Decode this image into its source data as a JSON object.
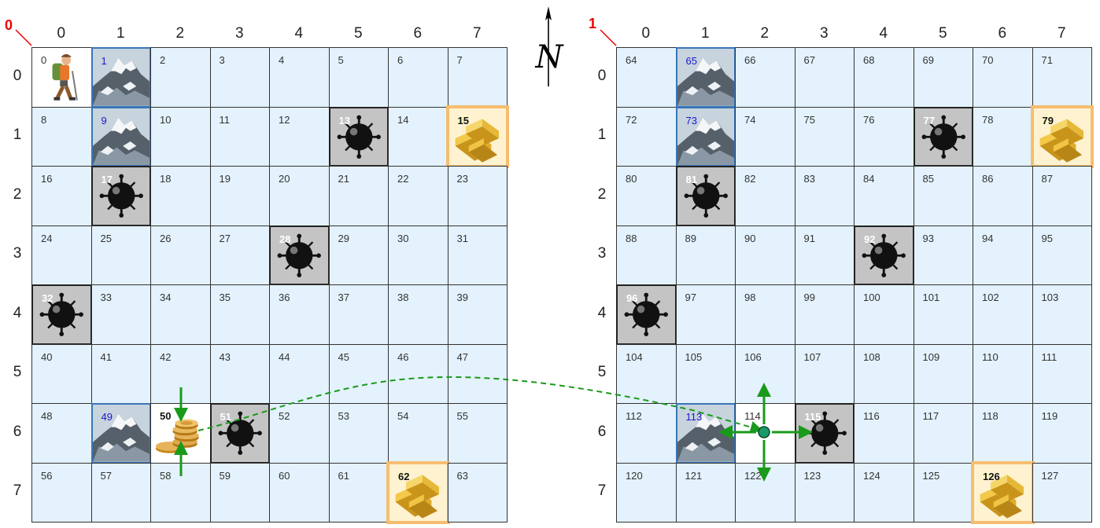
{
  "boards": [
    {
      "label": "0",
      "col_labels": [
        "0",
        "1",
        "2",
        "3",
        "4",
        "5",
        "6",
        "7"
      ],
      "row_labels": [
        "0",
        "1",
        "2",
        "3",
        "4",
        "5",
        "6",
        "7"
      ],
      "cells": [
        {
          "n": "0",
          "t": "hiker"
        },
        {
          "n": "1",
          "t": "mountain"
        },
        {
          "n": "2",
          "t": "empty"
        },
        {
          "n": "3",
          "t": "empty"
        },
        {
          "n": "4",
          "t": "empty"
        },
        {
          "n": "5",
          "t": "empty"
        },
        {
          "n": "6",
          "t": "empty"
        },
        {
          "n": "7",
          "t": "empty"
        },
        {
          "n": "8",
          "t": "empty"
        },
        {
          "n": "9",
          "t": "mountain"
        },
        {
          "n": "10",
          "t": "empty"
        },
        {
          "n": "11",
          "t": "empty"
        },
        {
          "n": "12",
          "t": "empty"
        },
        {
          "n": "13",
          "t": "mine"
        },
        {
          "n": "14",
          "t": "empty"
        },
        {
          "n": "15",
          "t": "gold"
        },
        {
          "n": "16",
          "t": "empty"
        },
        {
          "n": "17",
          "t": "mine"
        },
        {
          "n": "18",
          "t": "empty"
        },
        {
          "n": "19",
          "t": "empty"
        },
        {
          "n": "20",
          "t": "empty"
        },
        {
          "n": "21",
          "t": "empty"
        },
        {
          "n": "22",
          "t": "empty"
        },
        {
          "n": "23",
          "t": "empty"
        },
        {
          "n": "24",
          "t": "empty"
        },
        {
          "n": "25",
          "t": "empty"
        },
        {
          "n": "26",
          "t": "empty"
        },
        {
          "n": "27",
          "t": "empty"
        },
        {
          "n": "28",
          "t": "mine"
        },
        {
          "n": "29",
          "t": "empty"
        },
        {
          "n": "30",
          "t": "empty"
        },
        {
          "n": "31",
          "t": "empty"
        },
        {
          "n": "32",
          "t": "mine"
        },
        {
          "n": "33",
          "t": "empty"
        },
        {
          "n": "34",
          "t": "empty"
        },
        {
          "n": "35",
          "t": "empty"
        },
        {
          "n": "36",
          "t": "empty"
        },
        {
          "n": "37",
          "t": "empty"
        },
        {
          "n": "38",
          "t": "empty"
        },
        {
          "n": "39",
          "t": "empty"
        },
        {
          "n": "40",
          "t": "empty"
        },
        {
          "n": "41",
          "t": "empty"
        },
        {
          "n": "42",
          "t": "empty"
        },
        {
          "n": "43",
          "t": "empty"
        },
        {
          "n": "44",
          "t": "empty"
        },
        {
          "n": "45",
          "t": "empty"
        },
        {
          "n": "46",
          "t": "empty"
        },
        {
          "n": "47",
          "t": "empty"
        },
        {
          "n": "48",
          "t": "empty"
        },
        {
          "n": "49",
          "t": "mountain"
        },
        {
          "n": "50",
          "t": "coins"
        },
        {
          "n": "51",
          "t": "mine"
        },
        {
          "n": "52",
          "t": "empty"
        },
        {
          "n": "53",
          "t": "empty"
        },
        {
          "n": "54",
          "t": "empty"
        },
        {
          "n": "55",
          "t": "empty"
        },
        {
          "n": "56",
          "t": "empty"
        },
        {
          "n": "57",
          "t": "empty"
        },
        {
          "n": "58",
          "t": "empty"
        },
        {
          "n": "59",
          "t": "empty"
        },
        {
          "n": "60",
          "t": "empty"
        },
        {
          "n": "61",
          "t": "empty"
        },
        {
          "n": "62",
          "t": "gold"
        },
        {
          "n": "63",
          "t": "empty"
        }
      ]
    },
    {
      "label": "1",
      "col_labels": [
        "0",
        "1",
        "2",
        "3",
        "4",
        "5",
        "6",
        "7"
      ],
      "row_labels": [
        "0",
        "1",
        "2",
        "3",
        "4",
        "5",
        "6",
        "7"
      ],
      "cells": [
        {
          "n": "64",
          "t": "empty"
        },
        {
          "n": "65",
          "t": "mountain"
        },
        {
          "n": "66",
          "t": "empty"
        },
        {
          "n": "67",
          "t": "empty"
        },
        {
          "n": "68",
          "t": "empty"
        },
        {
          "n": "69",
          "t": "empty"
        },
        {
          "n": "70",
          "t": "empty"
        },
        {
          "n": "71",
          "t": "empty"
        },
        {
          "n": "72",
          "t": "empty"
        },
        {
          "n": "73",
          "t": "mountain"
        },
        {
          "n": "74",
          "t": "empty"
        },
        {
          "n": "75",
          "t": "empty"
        },
        {
          "n": "76",
          "t": "empty"
        },
        {
          "n": "77",
          "t": "mine"
        },
        {
          "n": "78",
          "t": "empty"
        },
        {
          "n": "79",
          "t": "gold"
        },
        {
          "n": "80",
          "t": "empty"
        },
        {
          "n": "81",
          "t": "mine"
        },
        {
          "n": "82",
          "t": "empty"
        },
        {
          "n": "83",
          "t": "empty"
        },
        {
          "n": "84",
          "t": "empty"
        },
        {
          "n": "85",
          "t": "empty"
        },
        {
          "n": "86",
          "t": "empty"
        },
        {
          "n": "87",
          "t": "empty"
        },
        {
          "n": "88",
          "t": "empty"
        },
        {
          "n": "89",
          "t": "empty"
        },
        {
          "n": "90",
          "t": "empty"
        },
        {
          "n": "91",
          "t": "empty"
        },
        {
          "n": "92",
          "t": "mine"
        },
        {
          "n": "93",
          "t": "empty"
        },
        {
          "n": "94",
          "t": "empty"
        },
        {
          "n": "95",
          "t": "empty"
        },
        {
          "n": "96",
          "t": "mine"
        },
        {
          "n": "97",
          "t": "empty"
        },
        {
          "n": "98",
          "t": "empty"
        },
        {
          "n": "99",
          "t": "empty"
        },
        {
          "n": "100",
          "t": "empty"
        },
        {
          "n": "101",
          "t": "empty"
        },
        {
          "n": "102",
          "t": "empty"
        },
        {
          "n": "103",
          "t": "empty"
        },
        {
          "n": "104",
          "t": "empty"
        },
        {
          "n": "105",
          "t": "empty"
        },
        {
          "n": "106",
          "t": "empty"
        },
        {
          "n": "107",
          "t": "empty"
        },
        {
          "n": "108",
          "t": "empty"
        },
        {
          "n": "109",
          "t": "empty"
        },
        {
          "n": "110",
          "t": "empty"
        },
        {
          "n": "111",
          "t": "empty"
        },
        {
          "n": "112",
          "t": "empty"
        },
        {
          "n": "113",
          "t": "mountain"
        },
        {
          "n": "114",
          "t": "target"
        },
        {
          "n": "115",
          "t": "mine"
        },
        {
          "n": "116",
          "t": "empty"
        },
        {
          "n": "117",
          "t": "empty"
        },
        {
          "n": "118",
          "t": "empty"
        },
        {
          "n": "119",
          "t": "empty"
        },
        {
          "n": "120",
          "t": "empty"
        },
        {
          "n": "121",
          "t": "empty"
        },
        {
          "n": "122",
          "t": "empty"
        },
        {
          "n": "123",
          "t": "empty"
        },
        {
          "n": "124",
          "t": "empty"
        },
        {
          "n": "125",
          "t": "empty"
        },
        {
          "n": "126",
          "t": "gold"
        },
        {
          "n": "127",
          "t": "empty"
        }
      ]
    }
  ],
  "compass_label": "N",
  "colors": {
    "cell_fill": "#e3f2fc",
    "mountain_border": "#3a76b8",
    "mine_fill": "#c4c4c4",
    "gold_border": "#f6bd70",
    "arrow": "#1a9a1a",
    "board_label": "#e00000"
  },
  "icons": {
    "hiker": "hiker-icon",
    "mountain": "mountain-icon",
    "mine": "mine-icon",
    "gold": "gold-bars-icon",
    "coins": "coin-stack-icon",
    "target": "target-dot-icon"
  }
}
